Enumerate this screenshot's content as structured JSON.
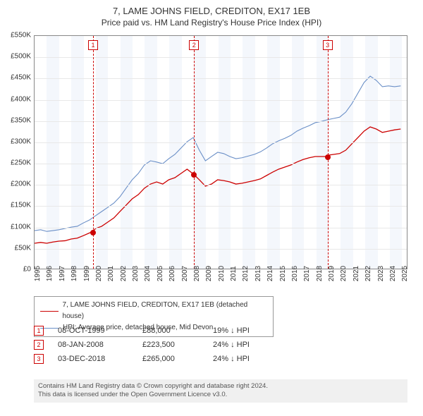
{
  "title_line1": "7, LAME JOHNS FIELD, CREDITON, EX17 1EB",
  "title_line2": "Price paid vs. HM Land Registry's House Price Index (HPI)",
  "chart": {
    "type": "line",
    "x_min": 1995,
    "x_max": 2025.5,
    "y_min": 0,
    "y_max": 550000,
    "y_ticks": [
      0,
      50000,
      100000,
      150000,
      200000,
      250000,
      300000,
      350000,
      400000,
      450000,
      500000,
      550000
    ],
    "y_tick_labels": [
      "£0",
      "£50K",
      "£100K",
      "£150K",
      "£200K",
      "£250K",
      "£300K",
      "£350K",
      "£400K",
      "£450K",
      "£500K",
      "£550K"
    ],
    "x_ticks": [
      1995,
      1996,
      1997,
      1998,
      1999,
      2000,
      2001,
      2002,
      2003,
      2004,
      2005,
      2006,
      2007,
      2008,
      2009,
      2010,
      2011,
      2012,
      2013,
      2014,
      2015,
      2016,
      2017,
      2018,
      2019,
      2020,
      2021,
      2022,
      2023,
      2024,
      2025
    ],
    "shaded_years": [
      1996,
      1998,
      2000,
      2002,
      2004,
      2006,
      2008,
      2010,
      2012,
      2014,
      2016,
      2018,
      2020,
      2022,
      2024
    ],
    "grid_color": "#e8e8e8",
    "background_color": "#ffffff",
    "shaded_color": "#f4f7fc",
    "series": [
      {
        "name": "property",
        "color": "#cc0000",
        "width": 1.3,
        "legend_label": "7, LAME JOHNS FIELD, CREDITON, EX17 1EB (detached house)",
        "points": [
          [
            1995,
            60000
          ],
          [
            1995.5,
            62000
          ],
          [
            1996,
            60000
          ],
          [
            1996.5,
            63000
          ],
          [
            1997,
            65000
          ],
          [
            1997.5,
            66000
          ],
          [
            1998,
            70000
          ],
          [
            1998.5,
            72000
          ],
          [
            1999,
            78000
          ],
          [
            1999.78,
            88000
          ],
          [
            2000,
            95000
          ],
          [
            2000.5,
            100000
          ],
          [
            2001,
            110000
          ],
          [
            2001.5,
            120000
          ],
          [
            2002,
            135000
          ],
          [
            2002.5,
            150000
          ],
          [
            2003,
            165000
          ],
          [
            2003.5,
            175000
          ],
          [
            2004,
            190000
          ],
          [
            2004.5,
            200000
          ],
          [
            2005,
            205000
          ],
          [
            2005.5,
            200000
          ],
          [
            2006,
            210000
          ],
          [
            2006.5,
            215000
          ],
          [
            2007,
            225000
          ],
          [
            2007.5,
            235000
          ],
          [
            2008.02,
            223500
          ],
          [
            2008.5,
            210000
          ],
          [
            2009,
            195000
          ],
          [
            2009.5,
            200000
          ],
          [
            2010,
            210000
          ],
          [
            2010.5,
            208000
          ],
          [
            2011,
            205000
          ],
          [
            2011.5,
            200000
          ],
          [
            2012,
            202000
          ],
          [
            2012.5,
            205000
          ],
          [
            2013,
            208000
          ],
          [
            2013.5,
            212000
          ],
          [
            2014,
            220000
          ],
          [
            2014.5,
            228000
          ],
          [
            2015,
            235000
          ],
          [
            2015.5,
            240000
          ],
          [
            2016,
            245000
          ],
          [
            2016.5,
            252000
          ],
          [
            2017,
            258000
          ],
          [
            2017.5,
            262000
          ],
          [
            2018,
            265000
          ],
          [
            2018.92,
            265000
          ],
          [
            2019,
            268000
          ],
          [
            2019.5,
            270000
          ],
          [
            2020,
            272000
          ],
          [
            2020.5,
            280000
          ],
          [
            2021,
            295000
          ],
          [
            2021.5,
            310000
          ],
          [
            2022,
            325000
          ],
          [
            2022.5,
            335000
          ],
          [
            2023,
            330000
          ],
          [
            2023.5,
            322000
          ],
          [
            2024,
            325000
          ],
          [
            2024.5,
            328000
          ],
          [
            2025,
            330000
          ]
        ]
      },
      {
        "name": "hpi",
        "color": "#6a8fc7",
        "width": 1.1,
        "legend_label": "HPI: Average price, detached house, Mid Devon",
        "points": [
          [
            1995,
            90000
          ],
          [
            1995.5,
            92000
          ],
          [
            1996,
            88000
          ],
          [
            1996.5,
            90000
          ],
          [
            1997,
            92000
          ],
          [
            1997.5,
            95000
          ],
          [
            1998,
            98000
          ],
          [
            1998.5,
            100000
          ],
          [
            1999,
            108000
          ],
          [
            1999.5,
            115000
          ],
          [
            2000,
            125000
          ],
          [
            2000.5,
            135000
          ],
          [
            2001,
            145000
          ],
          [
            2001.5,
            155000
          ],
          [
            2002,
            170000
          ],
          [
            2002.5,
            190000
          ],
          [
            2003,
            210000
          ],
          [
            2003.5,
            225000
          ],
          [
            2004,
            245000
          ],
          [
            2004.5,
            255000
          ],
          [
            2005,
            252000
          ],
          [
            2005.5,
            248000
          ],
          [
            2006,
            260000
          ],
          [
            2006.5,
            270000
          ],
          [
            2007,
            285000
          ],
          [
            2007.5,
            300000
          ],
          [
            2008,
            310000
          ],
          [
            2008.5,
            280000
          ],
          [
            2009,
            255000
          ],
          [
            2009.5,
            265000
          ],
          [
            2010,
            275000
          ],
          [
            2010.5,
            272000
          ],
          [
            2011,
            265000
          ],
          [
            2011.5,
            260000
          ],
          [
            2012,
            262000
          ],
          [
            2012.5,
            266000
          ],
          [
            2013,
            270000
          ],
          [
            2013.5,
            276000
          ],
          [
            2014,
            285000
          ],
          [
            2014.5,
            295000
          ],
          [
            2015,
            302000
          ],
          [
            2015.5,
            308000
          ],
          [
            2016,
            315000
          ],
          [
            2016.5,
            325000
          ],
          [
            2017,
            332000
          ],
          [
            2017.5,
            338000
          ],
          [
            2018,
            345000
          ],
          [
            2018.5,
            348000
          ],
          [
            2019,
            352000
          ],
          [
            2019.5,
            355000
          ],
          [
            2020,
            358000
          ],
          [
            2020.5,
            370000
          ],
          [
            2021,
            390000
          ],
          [
            2021.5,
            415000
          ],
          [
            2022,
            440000
          ],
          [
            2022.5,
            455000
          ],
          [
            2023,
            445000
          ],
          [
            2023.5,
            430000
          ],
          [
            2024,
            432000
          ],
          [
            2024.5,
            430000
          ],
          [
            2025,
            432000
          ]
        ]
      }
    ],
    "markers": [
      {
        "num": "1",
        "x": 1999.78,
        "y": 88000
      },
      {
        "num": "2",
        "x": 2008.02,
        "y": 223500
      },
      {
        "num": "3",
        "x": 2018.92,
        "y": 265000
      }
    ]
  },
  "events": [
    {
      "num": "1",
      "date": "08-OCT-1999",
      "price": "£88,000",
      "hpi": "19% ↓ HPI"
    },
    {
      "num": "2",
      "date": "08-JAN-2008",
      "price": "£223,500",
      "hpi": "24% ↓ HPI"
    },
    {
      "num": "3",
      "date": "03-DEC-2018",
      "price": "£265,000",
      "hpi": "24% ↓ HPI"
    }
  ],
  "footnote_line1": "Contains HM Land Registry data © Crown copyright and database right 2024.",
  "footnote_line2": "This data is licensed under the Open Government Licence v3.0."
}
